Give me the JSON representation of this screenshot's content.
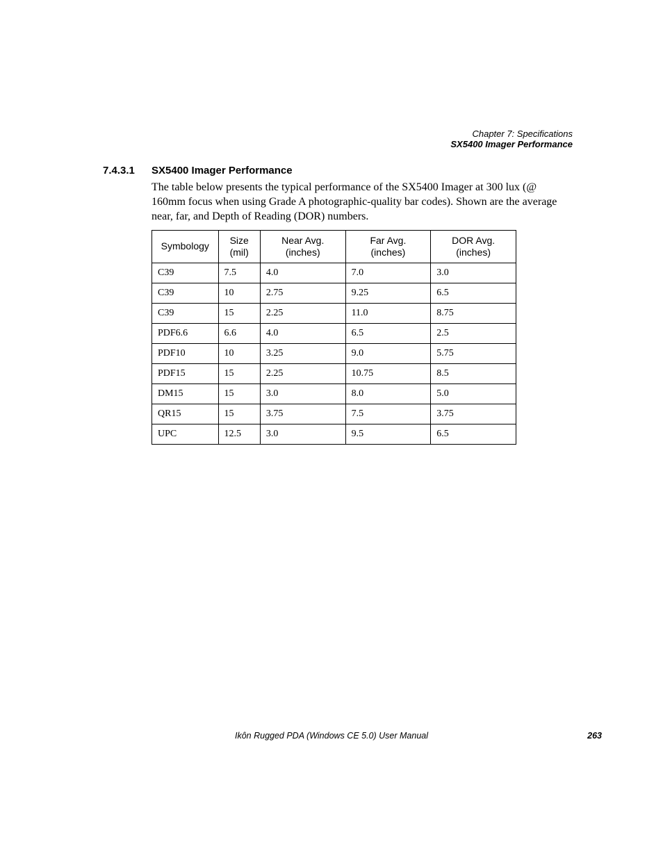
{
  "header": {
    "chapter": "Chapter 7: Specifications",
    "section": "SX5400 Imager Performance"
  },
  "section": {
    "number": "7.4.3.1",
    "title": "SX5400 Imager Performance"
  },
  "body": "The table below presents the typical performance of the SX5400 Imager at 300 lux (@ 160mm focus when using Grade A photographic-quality bar codes). Shown are the average near, far, and Depth of Reading (DOR) numbers.",
  "table": {
    "columns": [
      {
        "label1": "Symbology",
        "label2": ""
      },
      {
        "label1": "Size",
        "label2": "(mil)"
      },
      {
        "label1": "Near Avg.",
        "label2": "(inches)"
      },
      {
        "label1": "Far Avg.",
        "label2": "(inches)"
      },
      {
        "label1": "DOR Avg.",
        "label2": "(inches)"
      }
    ],
    "rows": [
      [
        "C39",
        "7.5",
        "4.0",
        "7.0",
        "3.0"
      ],
      [
        "C39",
        "10",
        "2.75",
        "9.25",
        "6.5"
      ],
      [
        "C39",
        "15",
        "2.25",
        "11.0",
        "8.75"
      ],
      [
        "PDF6.6",
        "6.6",
        "4.0",
        "6.5",
        "2.5"
      ],
      [
        "PDF10",
        "10",
        "3.25",
        "9.0",
        "5.75"
      ],
      [
        "PDF15",
        "15",
        "2.25",
        "10.75",
        "8.5"
      ],
      [
        "DM15",
        "15",
        "3.0",
        "8.0",
        "5.0"
      ],
      [
        "QR15",
        "15",
        "3.75",
        "7.5",
        "3.75"
      ],
      [
        "UPC",
        "12.5",
        "3.0",
        "9.5",
        "6.5"
      ]
    ]
  },
  "footer": {
    "title": "Ikôn Rugged PDA (Windows CE 5.0) User Manual",
    "page": "263"
  }
}
